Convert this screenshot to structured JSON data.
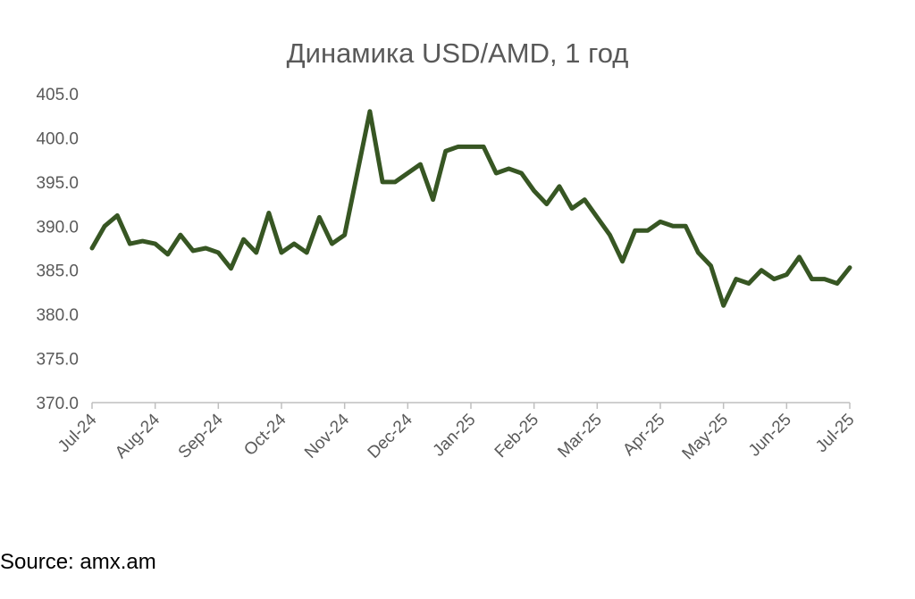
{
  "chart_data": {
    "type": "line",
    "title": "Динамика USD/AMD, 1 год",
    "source": "Source: amx.am",
    "categories": [
      "Jul-24",
      null,
      null,
      null,
      null,
      "Aug-24",
      null,
      null,
      null,
      null,
      "Sep-24",
      null,
      null,
      null,
      null,
      "Oct-24",
      null,
      null,
      null,
      null,
      "Nov-24",
      null,
      null,
      null,
      null,
      "Dec-24",
      null,
      null,
      null,
      null,
      "Jan-25",
      null,
      null,
      null,
      null,
      "Feb-25",
      null,
      null,
      null,
      null,
      "Mar-25",
      null,
      null,
      null,
      null,
      "Apr-25",
      null,
      null,
      null,
      null,
      "May-25",
      null,
      null,
      null,
      null,
      "Jun-25",
      null,
      null,
      null,
      null,
      "Jul-25"
    ],
    "series": [
      {
        "name": "USD/AMD",
        "color": "#375623",
        "values": [
          387.5,
          390,
          391.2,
          388,
          388.3,
          388,
          386.8,
          389,
          387.2,
          387.5,
          387,
          385.2,
          388.5,
          387,
          391.5,
          387,
          388,
          387,
          391,
          388,
          389,
          396,
          403,
          395,
          395,
          396,
          397,
          393,
          398.5,
          399,
          399,
          399,
          396,
          396.5,
          396,
          394,
          392.5,
          394.5,
          392,
          393,
          391,
          389,
          386,
          389.5,
          389.5,
          390.5,
          390,
          390,
          387,
          385.5,
          381,
          384,
          383.5,
          385,
          384,
          384.5,
          386.5,
          384,
          384,
          383.5,
          385.3
        ]
      }
    ],
    "ylim": [
      370,
      405
    ],
    "yticks": [
      {
        "value": 370,
        "label": "370.0"
      },
      {
        "value": 375,
        "label": "375.0"
      },
      {
        "value": 380,
        "label": "380.0"
      },
      {
        "value": 385,
        "label": "385.0"
      },
      {
        "value": 390,
        "label": "390.0"
      },
      {
        "value": 395,
        "label": "395.0"
      },
      {
        "value": 400,
        "label": "400.0"
      },
      {
        "value": 405,
        "label": "405.0"
      }
    ],
    "grid": false
  }
}
